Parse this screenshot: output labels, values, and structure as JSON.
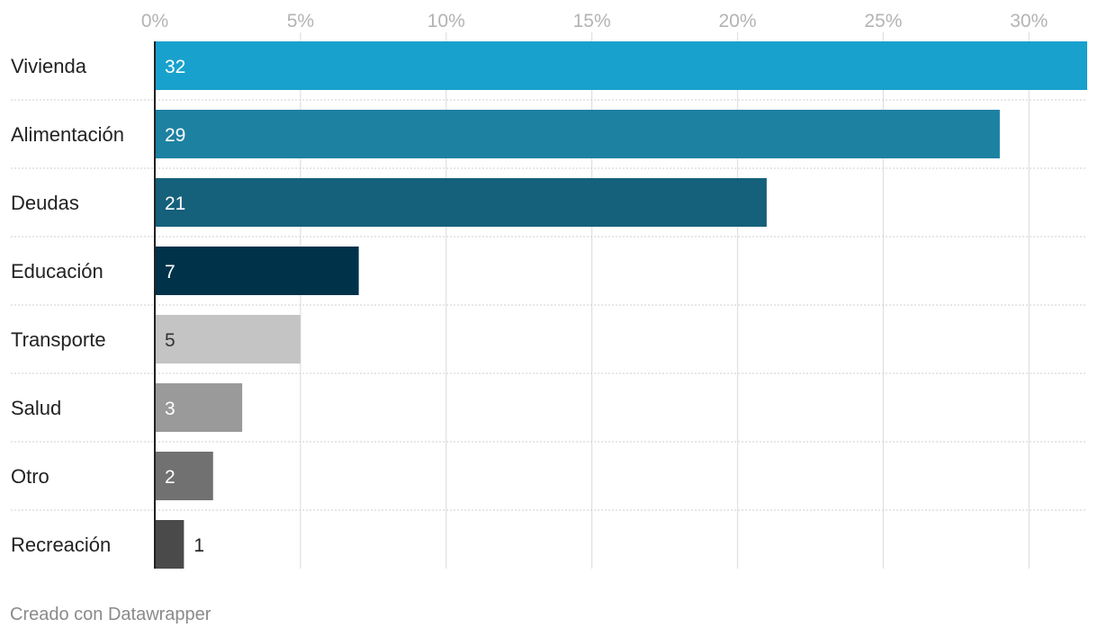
{
  "chart_data": {
    "type": "bar",
    "orientation": "horizontal",
    "categories": [
      "Vivienda",
      "Alimentación",
      "Deudas",
      "Educación",
      "Transporte",
      "Salud",
      "Otro",
      "Recreación"
    ],
    "values": [
      32,
      29,
      21,
      7,
      5,
      3,
      2,
      1
    ],
    "value_labels": [
      "32",
      "29",
      "21",
      "7",
      "5",
      "3",
      "2",
      "1"
    ],
    "colors": [
      "#18a1cd",
      "#1d81a2",
      "#15607a",
      "#00324a",
      "#c4c4c4",
      "#9a9a9a",
      "#717171",
      "#4a4a4a"
    ],
    "label_colors": [
      "#ffffff",
      "#ffffff",
      "#ffffff",
      "#ffffff",
      "#333333",
      "#ffffff",
      "#ffffff",
      "#222222"
    ],
    "xlim": [
      0,
      32
    ],
    "xticks": [
      0,
      5,
      10,
      15,
      20,
      25,
      30
    ],
    "xtick_labels": [
      "0%",
      "5%",
      "10%",
      "15%",
      "20%",
      "25%",
      "30%"
    ],
    "grid": true,
    "title": "",
    "xlabel": "",
    "ylabel": ""
  },
  "footer": {
    "credit": "Creado con Datawrapper"
  }
}
